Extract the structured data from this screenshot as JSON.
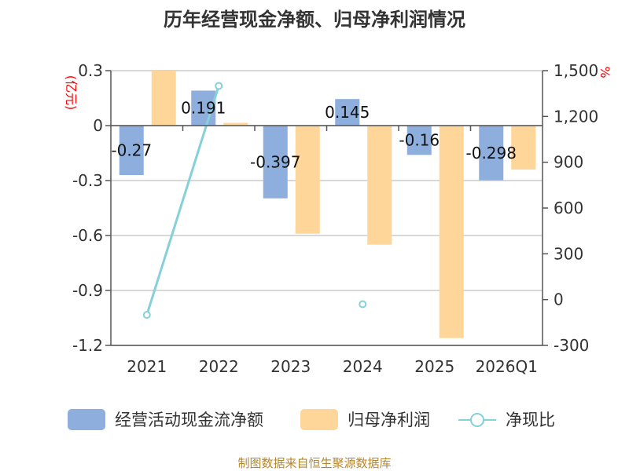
{
  "title": "历年经营现金净额、归母净利润情况",
  "source": "制图数据来自恒生聚源数据库",
  "chart_data": {
    "type": "bar",
    "categories": [
      "2021",
      "2022",
      "2023",
      "2024",
      "2025",
      "2026Q1"
    ],
    "left_axis": {
      "unit": "(亿元)",
      "ylim": [
        -1.2,
        0.3
      ],
      "ticks": [
        "0.3",
        "0",
        "-0.3",
        "-0.6",
        "-0.9",
        "-1.2"
      ]
    },
    "right_axis": {
      "unit": "%",
      "ylim": [
        -300,
        1500
      ],
      "ticks": [
        "1,500",
        "1,200",
        "900",
        "600",
        "300",
        "0",
        "-300"
      ]
    },
    "series": [
      {
        "name": "经营活动现金流净额",
        "type": "bar",
        "axis": "left",
        "color": "#8eaedd",
        "values": [
          -0.27,
          0.191,
          -0.397,
          0.145,
          -0.16,
          -0.298
        ],
        "labels": [
          "-0.27",
          "0.191",
          "-0.397",
          "0.145",
          "-0.16",
          "-0.298"
        ]
      },
      {
        "name": "归母净利润",
        "type": "bar",
        "axis": "left",
        "color": "#ffd699",
        "values": [
          0.3,
          0.015,
          -0.59,
          -0.65,
          -1.16,
          -0.24
        ]
      },
      {
        "name": "净现比",
        "type": "line",
        "axis": "right",
        "color": "#86d0da",
        "values": [
          -100,
          1400,
          null,
          -30,
          null,
          null
        ]
      }
    ],
    "grid": true,
    "legend": "bottom"
  }
}
